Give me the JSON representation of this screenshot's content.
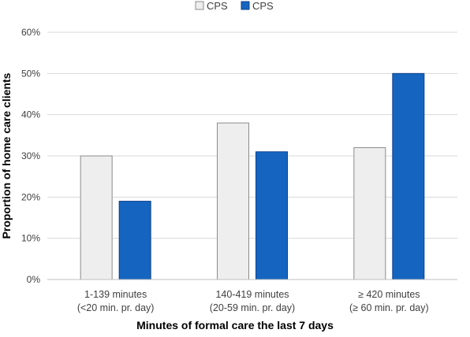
{
  "chart_data": {
    "type": "bar",
    "title": "",
    "xlabel": "Minutes of formal care the last 7 days",
    "ylabel": "Proportion of home care clients",
    "ylim": [
      0,
      60
    ],
    "yticks": [
      "0%",
      "10%",
      "20%",
      "30%",
      "40%",
      "50%",
      "60%"
    ],
    "categories": [
      [
        "1-139 minutes",
        "(<20 min. pr. day)"
      ],
      [
        "140-419 minutes",
        "(20-59 min. pr. day)"
      ],
      [
        "≥ 420 minutes",
        "(≥ 60 min. pr. day)"
      ]
    ],
    "series": [
      {
        "name": "CPS",
        "values": [
          30,
          38,
          32
        ],
        "color": "#eeeeee",
        "stroke": "#8c8c8c"
      },
      {
        "name": "CPS",
        "values": [
          19,
          31,
          50
        ],
        "color": "#1565c0",
        "stroke": "#0d3f8a"
      }
    ],
    "grid": true,
    "legend": "top-center"
  }
}
